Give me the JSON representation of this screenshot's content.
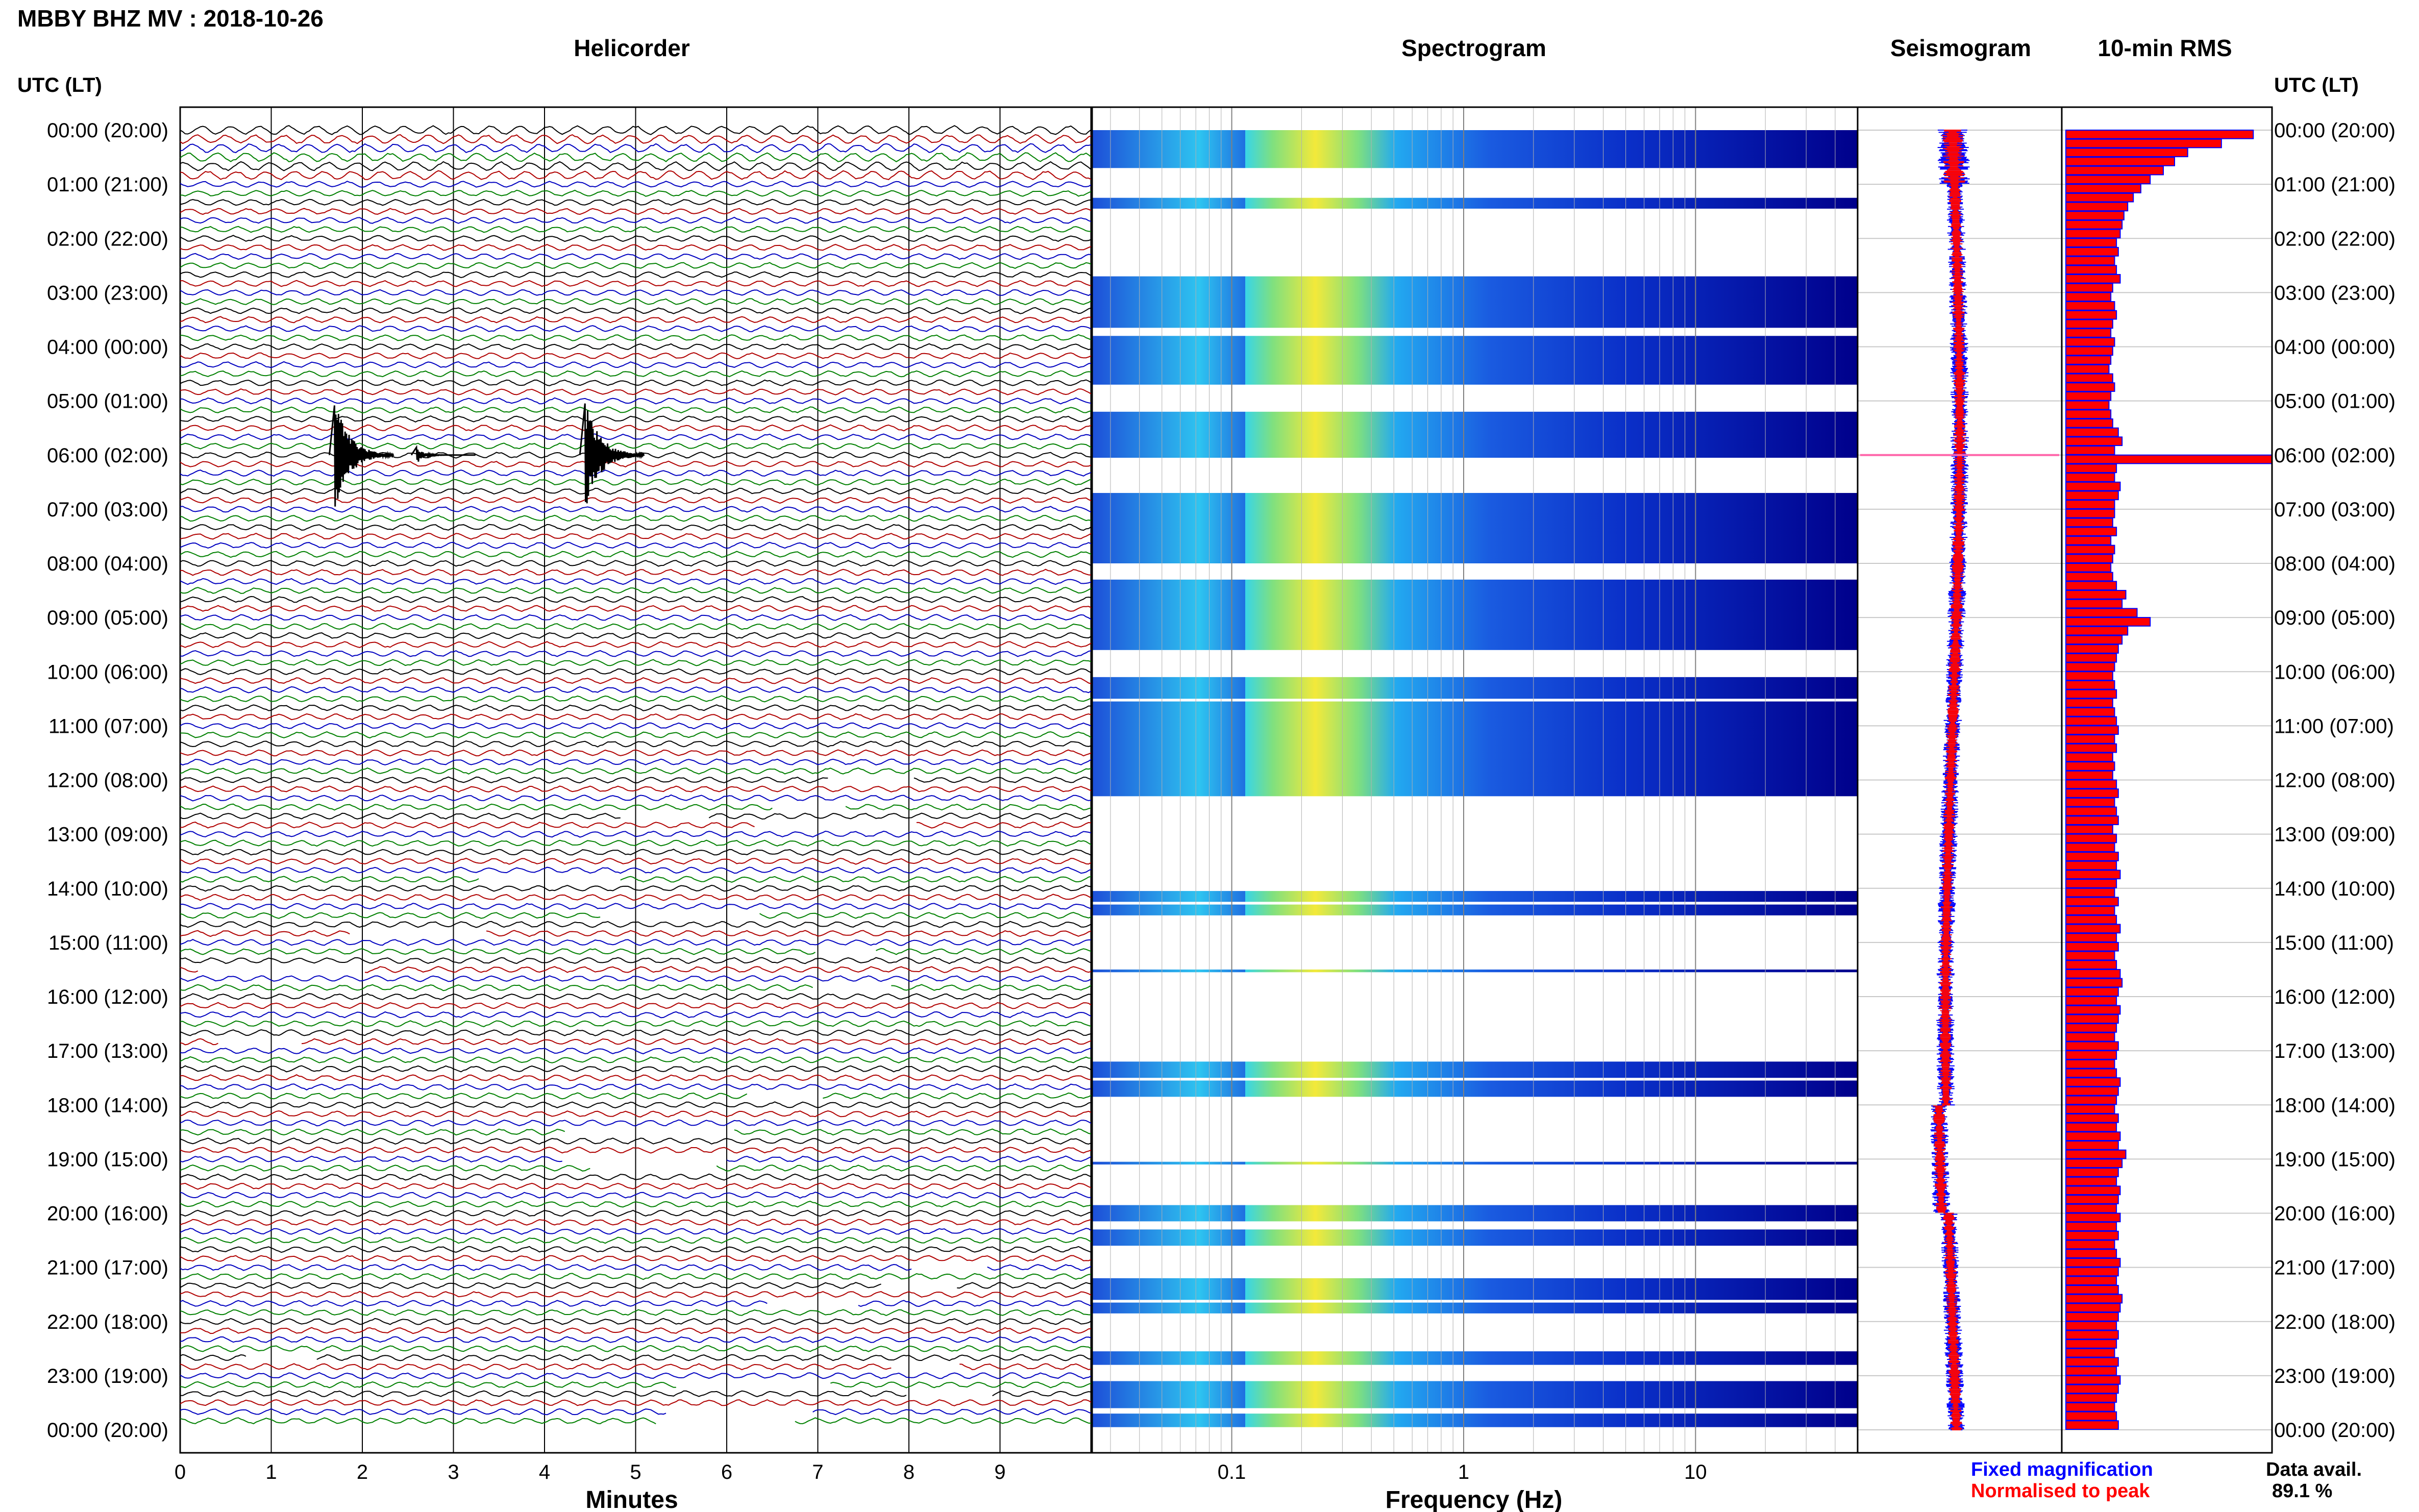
{
  "page_title": "MBBY BHZ MV : 2018-10-26",
  "time_axis": {
    "heading": "UTC (LT)",
    "labels": [
      "00:00 (20:00)",
      "01:00 (21:00)",
      "02:00 (22:00)",
      "03:00 (23:00)",
      "04:00 (00:00)",
      "05:00 (01:00)",
      "06:00 (02:00)",
      "07:00 (03:00)",
      "08:00 (04:00)",
      "09:00 (05:00)",
      "10:00 (06:00)",
      "11:00 (07:00)",
      "12:00 (08:00)",
      "13:00 (09:00)",
      "14:00 (10:00)",
      "15:00 (11:00)",
      "16:00 (12:00)",
      "17:00 (13:00)",
      "18:00 (14:00)",
      "19:00 (15:00)",
      "20:00 (16:00)",
      "21:00 (17:00)",
      "22:00 (18:00)",
      "23:00 (19:00)",
      "00:00 (20:00)"
    ]
  },
  "footer": {
    "legend_fixed": "Fixed magnification",
    "legend_normalised": "Normalised to peak",
    "data_avail_label": "Data avail.",
    "data_avail_value": "89.1 %"
  },
  "colors": {
    "trace_cycle": [
      "#000000",
      "#b00000",
      "#0000c0",
      "#008000"
    ],
    "fixed": "#0000ff",
    "normalised": "#ff0000",
    "spectrogram_background": "#00008b"
  },
  "chart_data": [
    {
      "type": "line",
      "title": "Helicorder",
      "xlabel": "Minutes",
      "xticks": [
        "0",
        "1",
        "2",
        "3",
        "4",
        "5",
        "6",
        "7",
        "8",
        "9"
      ],
      "xlim": [
        0,
        10
      ],
      "rows_per_hour": 6,
      "hours": 24,
      "events": [
        {
          "hour": 6,
          "minute": 1.75,
          "amplitude": "large"
        },
        {
          "hour": 6,
          "minute": 4.5,
          "amplitude": "large"
        },
        {
          "hour": 6,
          "minute": 2.65,
          "amplitude": "small"
        }
      ]
    },
    {
      "type": "heatmap",
      "title": "Spectrogram",
      "xlabel": "Frequency (Hz)",
      "xscale": "log",
      "xticks": [
        "0.1",
        "1",
        "10"
      ],
      "xlim": [
        0.025,
        50
      ],
      "peak_band_hz": [
        0.15,
        0.35
      ],
      "data_rows_hours": [
        [
          0.0,
          0.7
        ],
        [
          1.25,
          1.45
        ],
        [
          2.7,
          3.65
        ],
        [
          3.8,
          4.7
        ],
        [
          5.2,
          6.05
        ],
        [
          6.7,
          8.0
        ],
        [
          8.3,
          9.6
        ],
        [
          10.1,
          10.5
        ],
        [
          10.55,
          12.3
        ],
        [
          14.05,
          14.25
        ],
        [
          14.3,
          14.5
        ],
        [
          15.5,
          15.55
        ],
        [
          17.2,
          17.5
        ],
        [
          17.55,
          17.85
        ],
        [
          19.05,
          19.1
        ],
        [
          19.85,
          20.15
        ],
        [
          20.3,
          20.6
        ],
        [
          21.2,
          21.6
        ],
        [
          21.65,
          21.85
        ],
        [
          22.55,
          22.8
        ],
        [
          23.1,
          23.6
        ],
        [
          23.7,
          23.95
        ]
      ]
    },
    {
      "type": "line",
      "title": "Seismogram",
      "series": [
        {
          "name": "Fixed magnification"
        },
        {
          "name": "Normalised to peak"
        }
      ],
      "spike_hour": 6.0
    },
    {
      "type": "bar",
      "title": "10-min RMS",
      "orientation": "horizontal",
      "values_relative": [
        1.0,
        0.83,
        0.65,
        0.58,
        0.52,
        0.45,
        0.4,
        0.36,
        0.33,
        0.31,
        0.3,
        0.29,
        0.27,
        0.28,
        0.26,
        0.27,
        0.29,
        0.25,
        0.24,
        0.26,
        0.27,
        0.25,
        0.24,
        0.26,
        0.25,
        0.24,
        0.23,
        0.25,
        0.26,
        0.24,
        0.23,
        0.24,
        0.25,
        0.28,
        0.3,
        0.26,
        1.1,
        0.27,
        0.26,
        0.29,
        0.28,
        0.26,
        0.26,
        0.25,
        0.27,
        0.24,
        0.26,
        0.25,
        0.24,
        0.25,
        0.27,
        0.32,
        0.3,
        0.38,
        0.45,
        0.33,
        0.3,
        0.28,
        0.27,
        0.26,
        0.25,
        0.26,
        0.27,
        0.25,
        0.26,
        0.27,
        0.28,
        0.26,
        0.27,
        0.25,
        0.26,
        0.25,
        0.27,
        0.28,
        0.26,
        0.27,
        0.28,
        0.25,
        0.27,
        0.26,
        0.28,
        0.27,
        0.29,
        0.27,
        0.26,
        0.28,
        0.26,
        0.27,
        0.29,
        0.27,
        0.28,
        0.26,
        0.27,
        0.29,
        0.3,
        0.28,
        0.27,
        0.29,
        0.28,
        0.27,
        0.26,
        0.28,
        0.27,
        0.26,
        0.27,
        0.29,
        0.28,
        0.27,
        0.26,
        0.28,
        0.27,
        0.29,
        0.28,
        0.32,
        0.3,
        0.28,
        0.27,
        0.29,
        0.28,
        0.27,
        0.29,
        0.27,
        0.28,
        0.26,
        0.27,
        0.29,
        0.28,
        0.27,
        0.28,
        0.3,
        0.29,
        0.28,
        0.27,
        0.28,
        0.27,
        0.26,
        0.28,
        0.27,
        0.29,
        0.28,
        0.27,
        0.26,
        0.27,
        0.28
      ]
    }
  ]
}
